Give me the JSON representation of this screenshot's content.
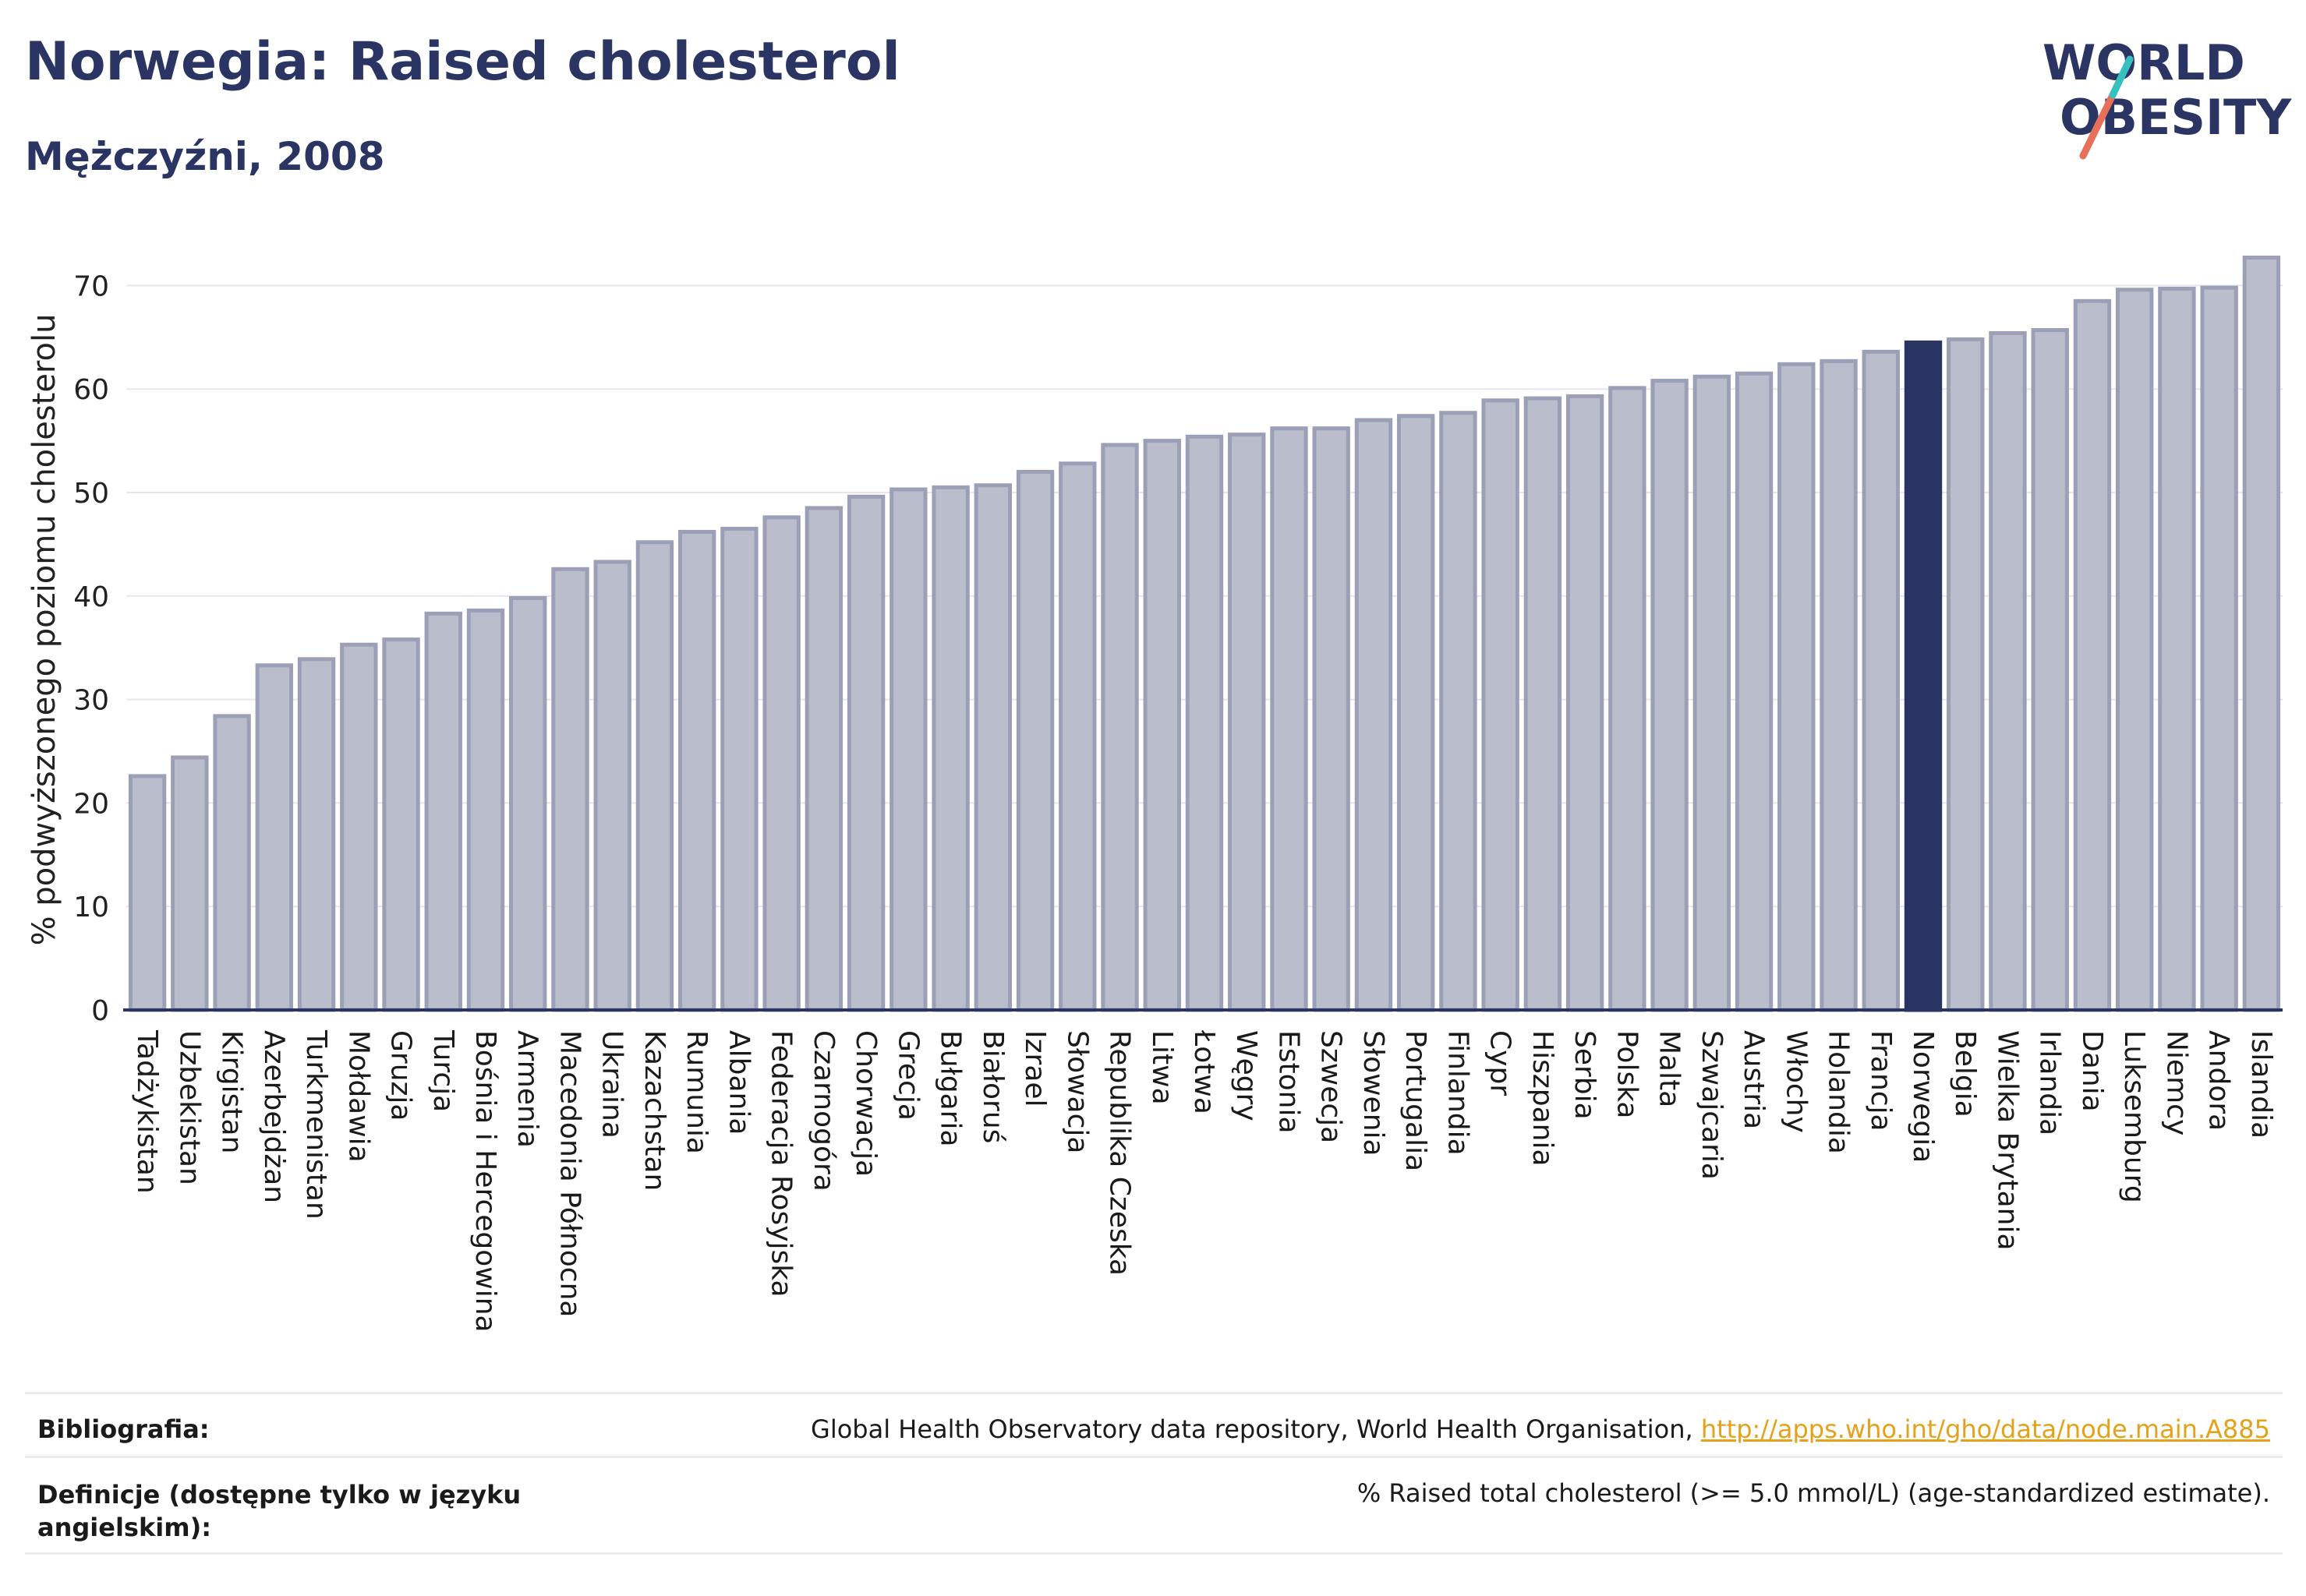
{
  "title": "Norwegia: Raised cholesterol",
  "subtitle": "Mężczyźni, 2008",
  "logo": {
    "line1": "WORLD",
    "line2": "OBESITY",
    "accent_color": "#e8705a",
    "accent_color2": "#37c0c0"
  },
  "chart_data": {
    "type": "bar",
    "ylabel": "% podwyższonego poziomu cholesterolu",
    "ylim": [
      0,
      75
    ],
    "yticks": [
      0,
      10,
      20,
      30,
      40,
      50,
      60,
      70
    ],
    "highlight": "Norwegia",
    "colors": {
      "bar": "#b9bdcc",
      "bar_edge": "#9ba0b6",
      "highlight": "#2b3563",
      "grid": "#e6e6ec"
    },
    "categories": [
      "Tadżykistan",
      "Uzbekistan",
      "Kirgistan",
      "Azerbejdżan",
      "Turkmenistan",
      "Mołdawia",
      "Gruzja",
      "Turcja",
      "Bośnia i Hercegowina",
      "Armenia",
      "Macedonia Północna",
      "Ukraina",
      "Kazachstan",
      "Rumunia",
      "Albania",
      "Federacja Rosyjska",
      "Czarnogóra",
      "Chorwacja",
      "Grecja",
      "Bułgaria",
      "Białoruś",
      "Izrael",
      "Słowacja",
      "Republika Czeska",
      "Litwa",
      "Łotwa",
      "Węgry",
      "Estonia",
      "Szwecja",
      "Słowenia",
      "Portugalia",
      "Finlandia",
      "Cypr",
      "Hiszpania",
      "Serbia",
      "Polska",
      "Malta",
      "Szwajcaria",
      "Austria",
      "Włochy",
      "Holandia",
      "Francja",
      "Norwegia",
      "Belgia",
      "Wielka Brytania",
      "Irlandia",
      "Dania",
      "Luksemburg",
      "Niemcy",
      "Andora",
      "Islandia"
    ],
    "values": [
      22.6,
      24.4,
      28.4,
      33.3,
      33.9,
      35.3,
      35.8,
      38.3,
      38.6,
      39.8,
      42.6,
      43.3,
      45.2,
      46.2,
      46.5,
      47.6,
      48.5,
      49.6,
      50.3,
      50.5,
      50.7,
      52.0,
      52.8,
      54.6,
      55.0,
      55.4,
      55.6,
      56.2,
      56.2,
      57.0,
      57.4,
      57.7,
      58.9,
      59.1,
      59.3,
      60.1,
      60.8,
      61.2,
      61.5,
      62.4,
      62.7,
      63.6,
      64.5,
      64.8,
      65.4,
      65.7,
      68.5,
      69.6,
      69.7,
      69.8,
      72.7
    ]
  },
  "footer": {
    "bibliography_label": "Bibliografia:",
    "bibliography_text": "Global Health Observatory data repository, World Health Organisation, ",
    "bibliography_link": "http://apps.who.int/gho/data/node.main.A885",
    "definitions_label_line1": "Definicje (dostępne tylko w języku",
    "definitions_label_line2": "angielskim):",
    "definitions_text": "% Raised total cholesterol (>= 5.0 mmol/L) (age-standardized estimate)."
  }
}
